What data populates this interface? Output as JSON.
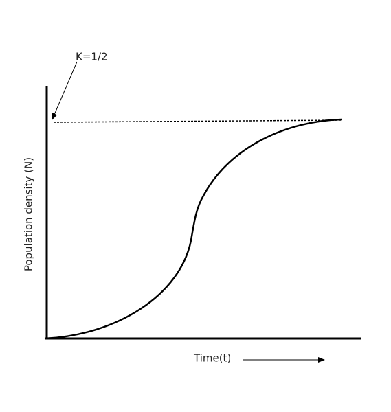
{
  "labels": {
    "carrying_capacity": "K=1/2",
    "y_axis": "Population density (N)",
    "x_axis": "Time(t)"
  }
}
